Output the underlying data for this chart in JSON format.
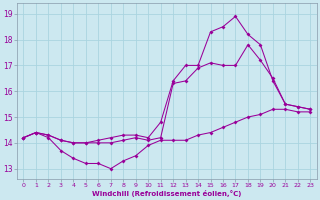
{
  "xlabel": "Windchill (Refroidissement éolien,°C)",
  "background_color": "#cce8f0",
  "grid_color": "#aad4e0",
  "line_color": "#990099",
  "spine_color": "#8899aa",
  "xlim": [
    -0.5,
    23.5
  ],
  "ylim": [
    12.6,
    19.4
  ],
  "xticks": [
    0,
    1,
    2,
    3,
    4,
    5,
    6,
    7,
    8,
    9,
    10,
    11,
    12,
    13,
    14,
    15,
    16,
    17,
    18,
    19,
    20,
    21,
    22,
    23
  ],
  "yticks": [
    13,
    14,
    15,
    16,
    17,
    18,
    19
  ],
  "series1_x": [
    0,
    1,
    2,
    3,
    4,
    5,
    6,
    7,
    8,
    9,
    10,
    11,
    12,
    13,
    14,
    15,
    16,
    17,
    18,
    19,
    20,
    21,
    22,
    23
  ],
  "series1_y": [
    14.2,
    14.4,
    14.2,
    13.7,
    13.4,
    13.2,
    13.2,
    13.0,
    13.3,
    13.5,
    13.9,
    14.1,
    14.1,
    14.1,
    14.3,
    14.4,
    14.6,
    14.8,
    15.0,
    15.1,
    15.3,
    15.3,
    15.2,
    15.2
  ],
  "series2_x": [
    0,
    1,
    2,
    3,
    4,
    5,
    6,
    7,
    8,
    9,
    10,
    11,
    12,
    13,
    14,
    15,
    16,
    17,
    18,
    19,
    20,
    21,
    22,
    23
  ],
  "series2_y": [
    14.2,
    14.4,
    14.3,
    14.1,
    14.0,
    14.0,
    14.0,
    14.0,
    14.1,
    14.2,
    14.1,
    14.2,
    16.3,
    16.4,
    16.9,
    17.1,
    17.0,
    17.0,
    17.8,
    17.2,
    16.5,
    15.5,
    15.4,
    15.3
  ],
  "series3_x": [
    0,
    1,
    2,
    3,
    4,
    5,
    6,
    7,
    8,
    9,
    10,
    11,
    12,
    13,
    14,
    15,
    16,
    17,
    18,
    19,
    20,
    21,
    22,
    23
  ],
  "series3_y": [
    14.2,
    14.4,
    14.3,
    14.1,
    14.0,
    14.0,
    14.1,
    14.2,
    14.3,
    14.3,
    14.2,
    14.8,
    16.4,
    17.0,
    17.0,
    18.3,
    18.5,
    18.9,
    18.2,
    17.8,
    16.4,
    15.5,
    15.4,
    15.3
  ]
}
